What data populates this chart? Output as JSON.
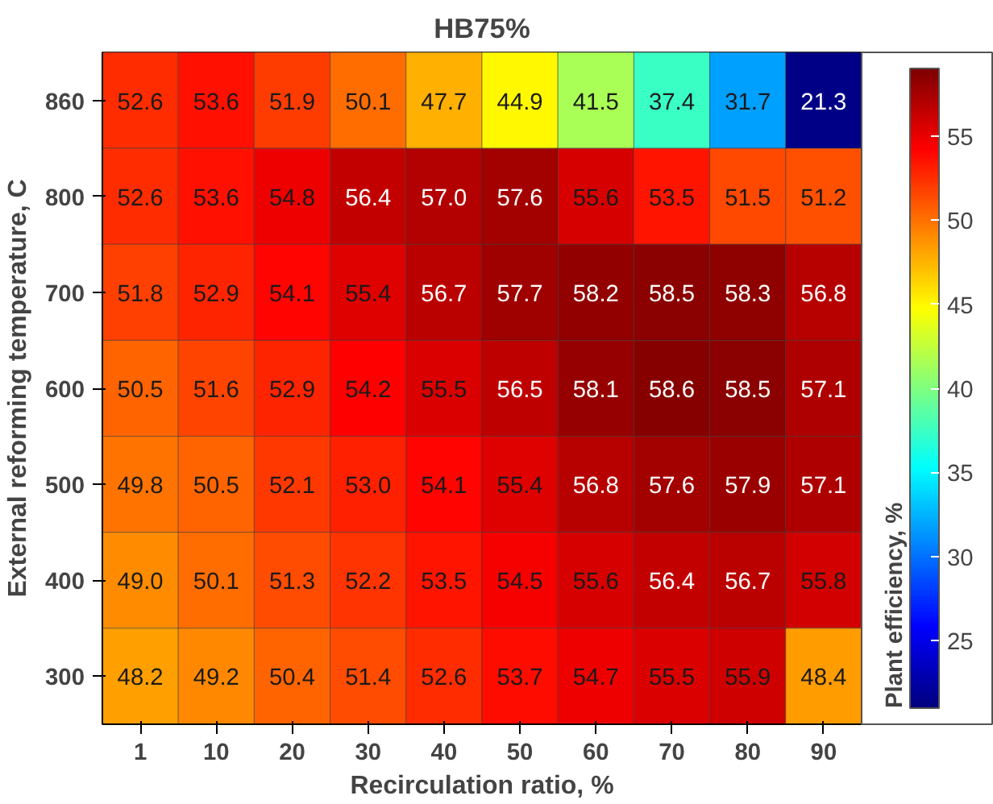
{
  "chart_data": {
    "type": "heatmap",
    "title": "HB75%",
    "xlabel": "Recirculation ratio, %",
    "ylabel": "External reforming temperature, C",
    "clabel": "Plant efficiency, %",
    "categories": [
      "1",
      "10",
      "20",
      "30",
      "40",
      "50",
      "60",
      "70",
      "80",
      "90"
    ],
    "y_categories": [
      "860",
      "800",
      "700",
      "600",
      "500",
      "400",
      "300"
    ],
    "cells": [
      [
        52.6,
        53.6,
        51.9,
        50.1,
        47.7,
        44.9,
        41.5,
        37.4,
        31.7,
        21.3
      ],
      [
        52.6,
        53.6,
        54.8,
        56.4,
        57.0,
        57.6,
        55.6,
        53.5,
        51.5,
        51.2
      ],
      [
        51.8,
        52.9,
        54.1,
        55.4,
        56.7,
        57.7,
        58.2,
        58.5,
        58.3,
        56.8
      ],
      [
        50.5,
        51.6,
        52.9,
        54.2,
        55.5,
        56.5,
        58.1,
        58.6,
        58.5,
        57.1
      ],
      [
        49.8,
        50.5,
        52.1,
        53.0,
        54.1,
        55.4,
        56.8,
        57.6,
        57.9,
        57.1
      ],
      [
        49.0,
        50.1,
        51.3,
        52.2,
        53.5,
        54.5,
        55.6,
        56.4,
        56.7,
        55.8
      ],
      [
        48.2,
        49.2,
        50.4,
        51.4,
        52.6,
        53.7,
        54.7,
        55.5,
        55.9,
        48.4
      ]
    ],
    "cell_labels": [
      [
        "52.6",
        "53.6",
        "51.9",
        "50.1",
        "47.7",
        "44.9",
        "41.5",
        "37.4",
        "31.7",
        "21.3"
      ],
      [
        "52.6",
        "53.6",
        "54.8",
        "56.4",
        "57.0",
        "57.6",
        "55.6",
        "53.5",
        "51.5",
        "51.2"
      ],
      [
        "51.8",
        "52.9",
        "54.1",
        "55.4",
        "56.7",
        "57.7",
        "58.2",
        "58.5",
        "58.3",
        "56.8"
      ],
      [
        "50.5",
        "51.6",
        "52.9",
        "54.2",
        "55.5",
        "56.5",
        "58.1",
        "58.6",
        "58.5",
        "57.1"
      ],
      [
        "49.8",
        "50.5",
        "52.1",
        "53.0",
        "54.1",
        "55.4",
        "56.8",
        "57.6",
        "57.9",
        "57.1"
      ],
      [
        "49.0",
        "50.1",
        "51.3",
        "52.2",
        "53.5",
        "54.5",
        "55.6",
        "56.4",
        "56.7",
        "55.8"
      ],
      [
        "48.2",
        "49.2",
        "50.4",
        "51.4",
        "52.6",
        "53.7",
        "54.7",
        "55.5",
        "55.9",
        "48.4"
      ]
    ],
    "clim": [
      21,
      59
    ],
    "cticks": [
      25,
      30,
      35,
      40,
      45,
      50,
      55
    ]
  }
}
